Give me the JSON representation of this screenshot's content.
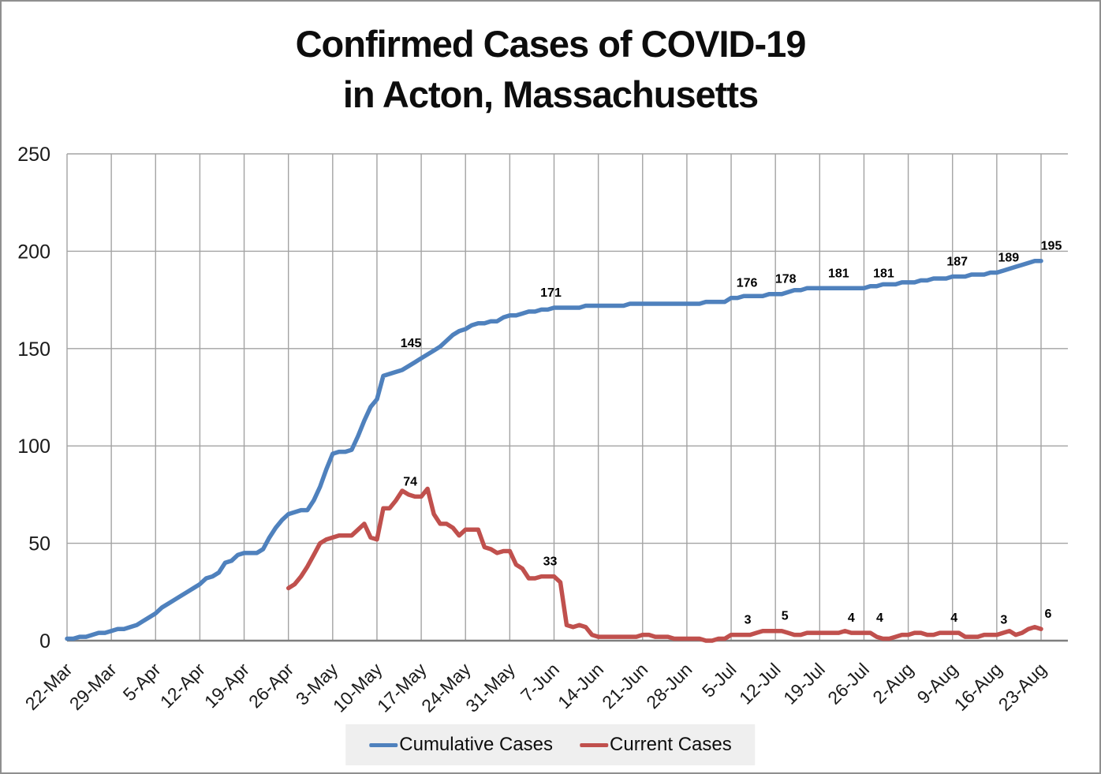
{
  "chart_data": {
    "type": "line",
    "title_line1": "Confirmed Cases of COVID-19",
    "title_line2": "in Acton, Massachusetts",
    "x_tick_labels": [
      "22-Mar",
      "29-Mar",
      "5-Apr",
      "12-Apr",
      "19-Apr",
      "26-Apr",
      "3-May",
      "10-May",
      "17-May",
      "24-May",
      "31-May",
      "7-Jun",
      "14-Jun",
      "21-Jun",
      "28-Jun",
      "5-Jul",
      "12-Jul",
      "19-Jul",
      "26-Jul",
      "2-Aug",
      "9-Aug",
      "16-Aug",
      "23-Aug"
    ],
    "x_tick_every_days": 7,
    "y_ticks": [
      0,
      50,
      100,
      150,
      200,
      250
    ],
    "ylim": [
      0,
      250
    ],
    "grid": true,
    "legend_position": "bottom-center",
    "colors": {
      "grid": "#a3a3a3",
      "axis": "#7f7f7f",
      "tick_text": "#1a1a1a",
      "label_text": "#000000",
      "legend_bg": "#efefef",
      "title_text": "#0d0d0d"
    },
    "series": [
      {
        "name": "Cumulative Cases",
        "color": "#4F81BD",
        "values": [
          1,
          1,
          2,
          2,
          3,
          4,
          4,
          5,
          6,
          6,
          7,
          8,
          10,
          12,
          14,
          17,
          19,
          21,
          23,
          25,
          27,
          29,
          32,
          33,
          35,
          40,
          41,
          44,
          45,
          45,
          45,
          47,
          53,
          58,
          62,
          65,
          66,
          67,
          67,
          72,
          79,
          88,
          96,
          97,
          97,
          98,
          105,
          113,
          120,
          124,
          136,
          137,
          138,
          139,
          141,
          143,
          145,
          147,
          149,
          151,
          154,
          157,
          159,
          160,
          162,
          163,
          163,
          164,
          164,
          166,
          167,
          167,
          168,
          169,
          169,
          170,
          170,
          171,
          171,
          171,
          171,
          171,
          172,
          172,
          172,
          172,
          172,
          172,
          172,
          173,
          173,
          173,
          173,
          173,
          173,
          173,
          173,
          173,
          173,
          173,
          173,
          174,
          174,
          174,
          174,
          176,
          176,
          177,
          177,
          177,
          177,
          178,
          178,
          178,
          179,
          180,
          180,
          181,
          181,
          181,
          181,
          181,
          181,
          181,
          181,
          181,
          181,
          182,
          182,
          183,
          183,
          183,
          184,
          184,
          184,
          185,
          185,
          186,
          186,
          186,
          187,
          187,
          187,
          188,
          188,
          188,
          189,
          189,
          190,
          191,
          192,
          193,
          194,
          195,
          195
        ]
      },
      {
        "name": "Current Cases",
        "color": "#C0504D",
        "values": [
          null,
          null,
          null,
          null,
          null,
          null,
          null,
          null,
          null,
          null,
          null,
          null,
          null,
          null,
          null,
          null,
          null,
          null,
          null,
          null,
          null,
          null,
          null,
          null,
          null,
          null,
          null,
          null,
          null,
          null,
          null,
          null,
          null,
          null,
          null,
          27,
          29,
          33,
          38,
          44,
          50,
          52,
          53,
          54,
          54,
          54,
          57,
          60,
          53,
          52,
          68,
          68,
          72,
          77,
          75,
          74,
          74,
          78,
          65,
          60,
          60,
          58,
          54,
          57,
          57,
          57,
          48,
          47,
          45,
          46,
          46,
          39,
          37,
          32,
          32,
          33,
          33,
          33,
          30,
          8,
          7,
          8,
          7,
          3,
          2,
          2,
          2,
          2,
          2,
          2,
          2,
          3,
          3,
          2,
          2,
          2,
          1,
          1,
          1,
          1,
          1,
          0,
          0,
          1,
          1,
          3,
          3,
          3,
          3,
          4,
          5,
          5,
          5,
          5,
          4,
          3,
          3,
          4,
          4,
          4,
          4,
          4,
          4,
          5,
          4,
          4,
          4,
          4,
          2,
          1,
          1,
          2,
          3,
          3,
          4,
          4,
          3,
          3,
          4,
          4,
          4,
          4,
          2,
          2,
          2,
          3,
          3,
          3,
          4,
          5,
          3,
          4,
          6,
          7,
          6
        ]
      }
    ],
    "point_labels": [
      {
        "series": 0,
        "day": 56,
        "text": "145",
        "dx": -13
      },
      {
        "series": 0,
        "day": 77,
        "text": "171",
        "dx": -4
      },
      {
        "series": 0,
        "day": 105,
        "text": "176",
        "dx": 20
      },
      {
        "series": 0,
        "day": 112,
        "text": "178",
        "dx": 13
      },
      {
        "series": 0,
        "day": 119,
        "text": "181",
        "dx": 24
      },
      {
        "series": 0,
        "day": 126,
        "text": "181",
        "dx": 25
      },
      {
        "series": 0,
        "day": 140,
        "text": "187",
        "dx": 6
      },
      {
        "series": 0,
        "day": 147,
        "text": "189",
        "dx": 15
      },
      {
        "series": 0,
        "day": 154,
        "text": "195",
        "dx": 13
      },
      {
        "series": 1,
        "day": 56,
        "text": "74",
        "dx": -14
      },
      {
        "series": 1,
        "day": 77,
        "text": "33",
        "dx": -5
      },
      {
        "series": 1,
        "day": 105,
        "text": "3",
        "dx": 21
      },
      {
        "series": 1,
        "day": 112,
        "text": "5",
        "dx": 12
      },
      {
        "series": 1,
        "day": 119,
        "text": "4",
        "dx": 40
      },
      {
        "series": 1,
        "day": 126,
        "text": "4",
        "dx": 20
      },
      {
        "series": 1,
        "day": 140,
        "text": "4",
        "dx": 2
      },
      {
        "series": 1,
        "day": 147,
        "text": "3",
        "dx": 9
      },
      {
        "series": 1,
        "day": 154,
        "text": "6",
        "dx": 9
      }
    ]
  },
  "legend": {
    "items": [
      {
        "label": "Cumulative Cases",
        "color": "#4F81BD"
      },
      {
        "label": "Current Cases",
        "color": "#C0504D"
      }
    ]
  }
}
